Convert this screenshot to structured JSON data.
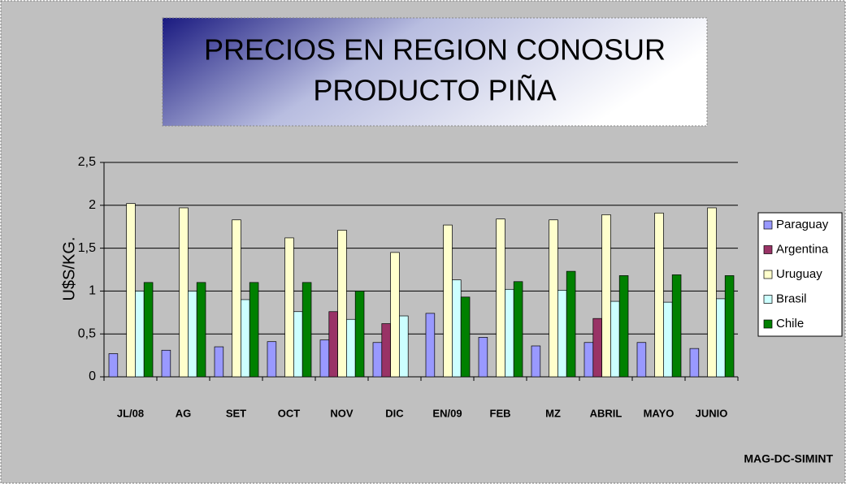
{
  "chart_data": {
    "type": "bar",
    "title_lines": [
      "PRECIOS EN REGION CONOSUR",
      "PRODUCTO PIÑA"
    ],
    "y_label": "U$S/KG.",
    "source": "MAG-DC-SIMINT",
    "categories": [
      "JL/08",
      "AG",
      "SET",
      "OCT",
      "NOV",
      "DIC",
      "EN/09",
      "FEB",
      "MZ",
      "ABRIL",
      "MAYO",
      "JUNIO"
    ],
    "series": [
      {
        "name": "Paraguay",
        "color": "#9999ff",
        "values": [
          0.27,
          0.31,
          0.35,
          0.41,
          0.43,
          0.4,
          0.74,
          0.46,
          0.36,
          0.4,
          0.4,
          0.33
        ]
      },
      {
        "name": "Argentina",
        "color": "#993366",
        "values": [
          null,
          null,
          null,
          null,
          0.76,
          0.62,
          null,
          null,
          null,
          0.68,
          null,
          null
        ]
      },
      {
        "name": "Uruguay",
        "color": "#ffffcc",
        "values": [
          2.02,
          1.97,
          1.83,
          1.62,
          1.71,
          1.45,
          1.77,
          1.84,
          1.83,
          1.89,
          1.91,
          1.97
        ]
      },
      {
        "name": "Brasil",
        "color": "#ccffff",
        "values": [
          1.0,
          1.0,
          0.9,
          0.76,
          0.67,
          0.71,
          1.13,
          1.02,
          1.01,
          0.88,
          0.87,
          0.91
        ]
      },
      {
        "name": "Chile",
        "color": "#008000",
        "values": [
          1.1,
          1.1,
          1.1,
          1.1,
          1.0,
          null,
          0.93,
          1.11,
          1.23,
          1.18,
          1.19,
          1.18
        ]
      }
    ],
    "ylim": [
      0,
      2.5
    ],
    "yticks": [
      0,
      {
        "value": 0.5,
        "label": "0,5"
      },
      1,
      {
        "value": 1.5,
        "label": "1,5"
      },
      2,
      {
        "value": 2.5,
        "label": "2,5"
      }
    ],
    "grid": true,
    "legend": "right"
  }
}
